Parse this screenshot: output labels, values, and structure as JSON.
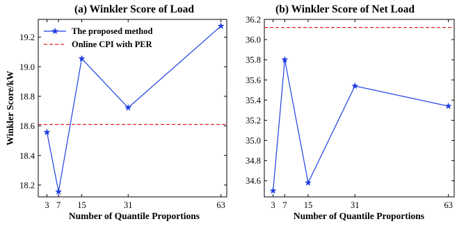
{
  "chart_data": [
    {
      "type": "line",
      "title": "(a) Winkler Score of Load",
      "xlabel": "Number of Quantile Proportions",
      "ylabel": "Winkler Score/kW",
      "x_ticks": [
        3,
        7,
        15,
        31,
        63
      ],
      "y_ticks": [
        "18.2",
        "18.4",
        "18.6",
        "18.8",
        "19.0",
        "19.2"
      ],
      "xlim": [
        0,
        65
      ],
      "ylim": [
        18.12,
        19.32
      ],
      "series": [
        {
          "name": "The proposed method",
          "x": [
            3,
            7,
            15,
            31,
            63
          ],
          "y": [
            18.557,
            18.155,
            19.055,
            18.723,
            19.275
          ],
          "color": "#1f3fe0",
          "marker": "star"
        }
      ],
      "reference_lines": [
        {
          "name": "Online CPI with PER",
          "y": 18.61,
          "color": "#e02020",
          "style": "dashed"
        }
      ],
      "legend": "top-left",
      "grid": false
    },
    {
      "type": "line",
      "title": "(b) Winkler Score of Net Load",
      "xlabel": "Number of Quantile Proportions",
      "ylabel": "",
      "x_ticks": [
        3,
        7,
        15,
        31,
        63
      ],
      "y_ticks": [
        "34.6",
        "34.8",
        "35.0",
        "35.2",
        "35.4",
        "35.6",
        "35.8",
        "36.0",
        "36.2"
      ],
      "xlim": [
        0,
        65
      ],
      "ylim": [
        34.44,
        36.2
      ],
      "series": [
        {
          "name": "The proposed method",
          "x": [
            3,
            7,
            15,
            31,
            63
          ],
          "y": [
            34.5,
            35.8,
            34.58,
            35.54,
            35.34
          ],
          "color": "#1f3fe0",
          "marker": "star"
        }
      ],
      "reference_lines": [
        {
          "name": "Online CPI with PER",
          "y": 36.12,
          "color": "#e02020",
          "style": "dashed"
        }
      ],
      "grid": false
    }
  ]
}
